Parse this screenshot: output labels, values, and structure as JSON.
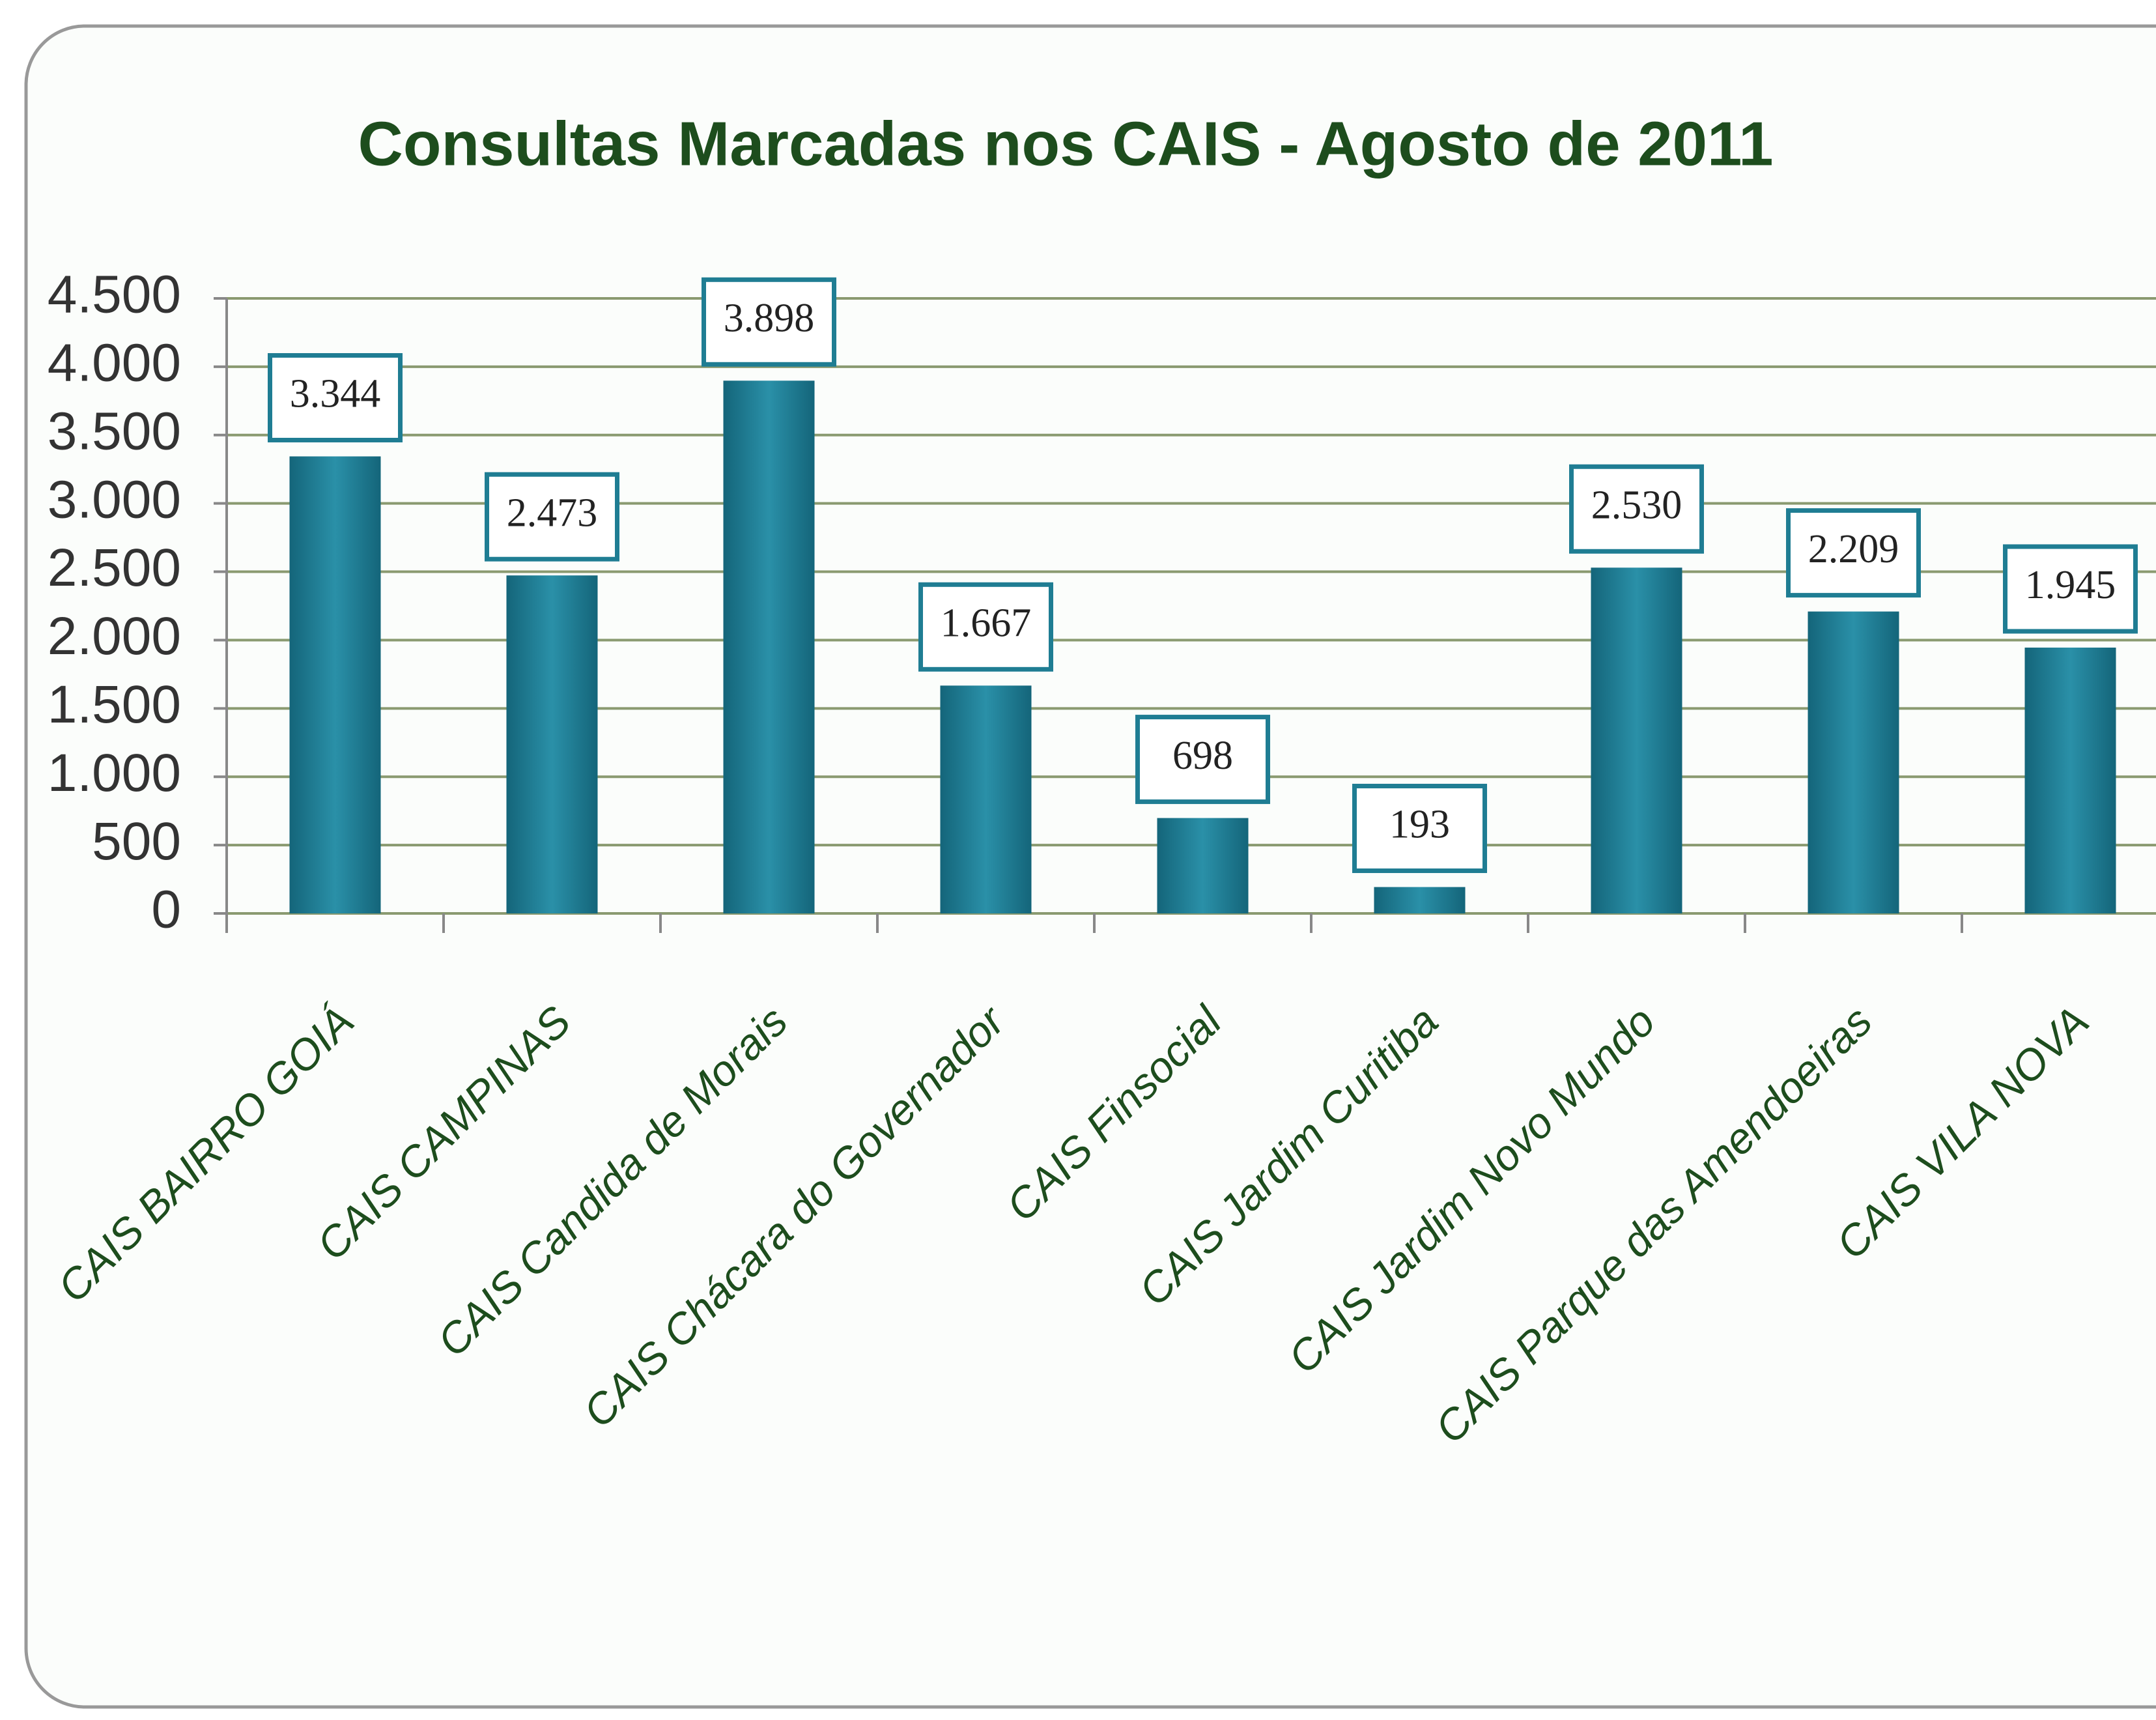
{
  "chart_data": {
    "type": "bar",
    "title": "Consultas Marcadas nos CAIS - Agosto de 2011",
    "categories": [
      "CAIS BAIRRO GOIÁ",
      "CAIS CAMPINAS",
      "CAIS Candida de Morais",
      "CAIS Chácara do Governador",
      "CAIS Finsocial",
      "CAIS Jardim Curitiba",
      "CAIS Jardim Novo Mundo",
      "CAIS Parque das Amendoeiras",
      "CAIS VILA NOVA"
    ],
    "values": [
      3344,
      2473,
      3898,
      1667,
      698,
      193,
      2530,
      2209,
      1945
    ],
    "value_labels": [
      "3.344",
      "2.473",
      "3.898",
      "1.667",
      "698",
      "193",
      "2.530",
      "2.209",
      "1.945"
    ],
    "color": "#1f7d93",
    "ylim": [
      0,
      4500
    ],
    "yticks": [
      0,
      500,
      {
        "value": 1000,
        "label": "1.000"
      },
      {
        "value": 1500,
        "label": "1.500"
      },
      {
        "value": 2000,
        "label": "2.000"
      },
      {
        "value": 2500,
        "label": "2.500"
      },
      {
        "value": 3000,
        "label": "3.000"
      },
      {
        "value": 3500,
        "label": "3.500"
      },
      {
        "value": 4000,
        "label": "4.000"
      },
      {
        "value": 4500,
        "label": "4.500"
      }
    ],
    "grid": true
  }
}
